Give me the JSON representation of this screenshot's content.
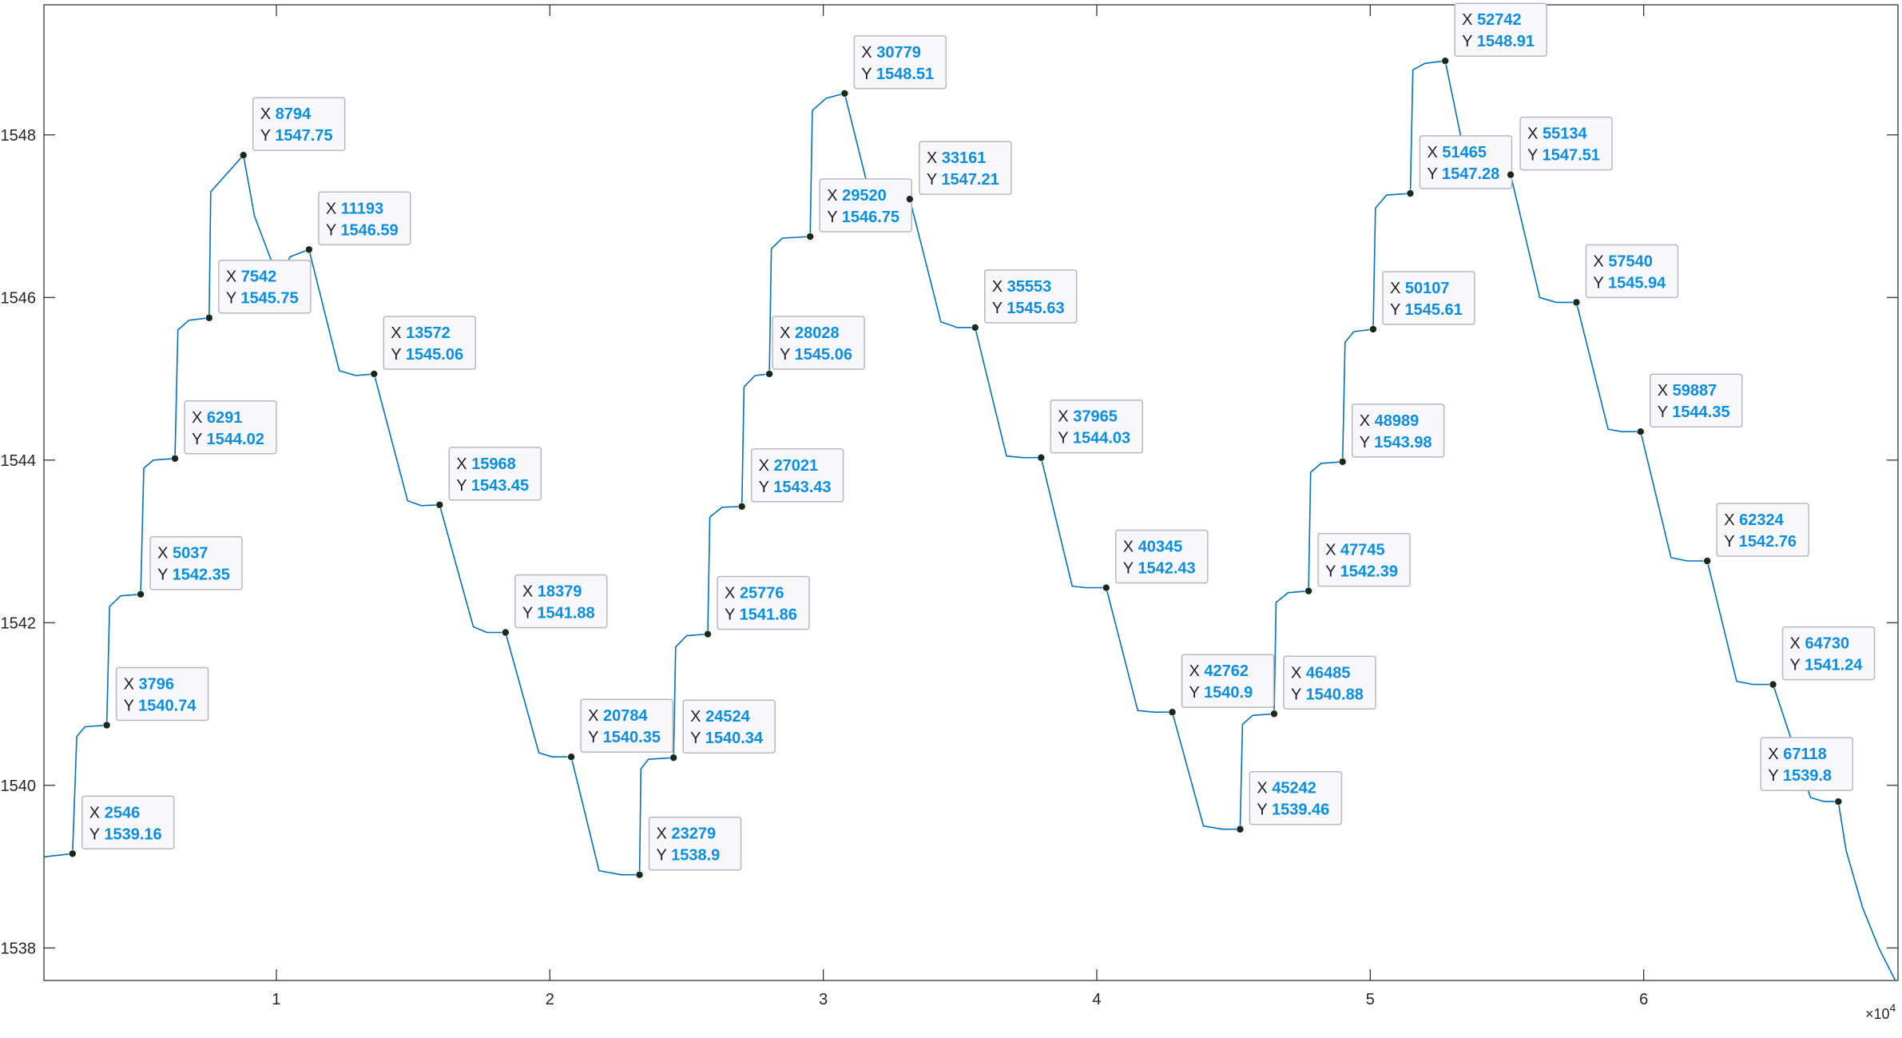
{
  "chart_data": {
    "type": "line",
    "title": "",
    "xlabel": "",
    "ylabel": "",
    "xlim": [
      1500,
      69300
    ],
    "ylim": [
      1537.6,
      1549.6
    ],
    "x_exponent_label": "×10",
    "x_exponent_power": "4",
    "x_ticks": [
      {
        "value": 10000,
        "label": "1"
      },
      {
        "value": 20000,
        "label": "2"
      },
      {
        "value": 30000,
        "label": "3"
      },
      {
        "value": 40000,
        "label": "4"
      },
      {
        "value": 50000,
        "label": "5"
      },
      {
        "value": 60000,
        "label": "6"
      }
    ],
    "y_ticks": [
      {
        "value": 1538,
        "label": "1538"
      },
      {
        "value": 1540,
        "label": "1540"
      },
      {
        "value": 1542,
        "label": "1542"
      },
      {
        "value": 1544,
        "label": "1544"
      },
      {
        "value": 1546,
        "label": "1546"
      },
      {
        "value": 1548,
        "label": "1548"
      }
    ],
    "grid": false,
    "line_color": "#0072BD",
    "marker_color": "#1a2a1a",
    "datatip_value_color": "#0a8ee0",
    "series": [
      {
        "name": "",
        "points": [
          [
            1500,
            1539.12
          ],
          [
            2546,
            1539.16
          ],
          [
            2700,
            1540.6
          ],
          [
            3000,
            1540.72
          ],
          [
            3796,
            1540.74
          ],
          [
            3900,
            1542.2
          ],
          [
            4300,
            1542.33
          ],
          [
            5037,
            1542.35
          ],
          [
            5150,
            1543.9
          ],
          [
            5500,
            1544.0
          ],
          [
            6291,
            1544.02
          ],
          [
            6400,
            1545.6
          ],
          [
            6800,
            1545.72
          ],
          [
            7542,
            1545.75
          ],
          [
            7600,
            1547.3
          ],
          [
            8794,
            1547.75
          ],
          [
            9200,
            1547.0
          ],
          [
            10100,
            1546.2
          ],
          [
            10500,
            1546.5
          ],
          [
            11193,
            1546.59
          ],
          [
            12300,
            1545.1
          ],
          [
            12900,
            1545.04
          ],
          [
            13572,
            1545.06
          ],
          [
            14800,
            1543.5
          ],
          [
            15300,
            1543.44
          ],
          [
            15968,
            1543.45
          ],
          [
            17200,
            1541.95
          ],
          [
            17700,
            1541.88
          ],
          [
            18379,
            1541.88
          ],
          [
            19600,
            1540.4
          ],
          [
            20100,
            1540.35
          ],
          [
            20784,
            1540.35
          ],
          [
            21800,
            1538.95
          ],
          [
            22600,
            1538.9
          ],
          [
            23279,
            1538.9
          ],
          [
            23330,
            1540.2
          ],
          [
            23600,
            1540.32
          ],
          [
            24524,
            1540.34
          ],
          [
            24600,
            1541.7
          ],
          [
            25000,
            1541.84
          ],
          [
            25776,
            1541.86
          ],
          [
            25850,
            1543.3
          ],
          [
            26300,
            1543.42
          ],
          [
            27021,
            1543.43
          ],
          [
            27100,
            1544.9
          ],
          [
            27500,
            1545.04
          ],
          [
            28028,
            1545.06
          ],
          [
            28100,
            1546.6
          ],
          [
            28500,
            1546.73
          ],
          [
            29520,
            1546.75
          ],
          [
            29600,
            1548.3
          ],
          [
            30100,
            1548.45
          ],
          [
            30779,
            1548.51
          ],
          [
            31600,
            1547.4
          ],
          [
            33161,
            1547.21
          ],
          [
            34300,
            1545.7
          ],
          [
            34900,
            1545.63
          ],
          [
            35553,
            1545.63
          ],
          [
            36700,
            1544.05
          ],
          [
            37300,
            1544.03
          ],
          [
            37965,
            1544.03
          ],
          [
            39100,
            1542.45
          ],
          [
            39600,
            1542.43
          ],
          [
            40345,
            1542.43
          ],
          [
            41500,
            1540.92
          ],
          [
            42100,
            1540.9
          ],
          [
            42762,
            1540.9
          ],
          [
            43900,
            1539.5
          ],
          [
            44600,
            1539.46
          ],
          [
            45242,
            1539.46
          ],
          [
            45330,
            1540.75
          ],
          [
            45700,
            1540.86
          ],
          [
            46485,
            1540.88
          ],
          [
            46560,
            1542.25
          ],
          [
            47000,
            1542.37
          ],
          [
            47745,
            1542.39
          ],
          [
            47820,
            1543.85
          ],
          [
            48200,
            1543.96
          ],
          [
            48989,
            1543.98
          ],
          [
            49080,
            1545.45
          ],
          [
            49400,
            1545.58
          ],
          [
            50107,
            1545.61
          ],
          [
            50190,
            1547.1
          ],
          [
            50600,
            1547.26
          ],
          [
            51465,
            1547.28
          ],
          [
            51560,
            1548.8
          ],
          [
            52000,
            1548.88
          ],
          [
            52742,
            1548.91
          ],
          [
            53300,
            1548.0
          ],
          [
            53500,
            1547.5
          ],
          [
            55134,
            1547.51
          ],
          [
            56200,
            1546.0
          ],
          [
            56800,
            1545.94
          ],
          [
            57540,
            1545.94
          ],
          [
            58700,
            1544.38
          ],
          [
            59200,
            1544.35
          ],
          [
            59887,
            1544.35
          ],
          [
            61000,
            1542.8
          ],
          [
            61600,
            1542.76
          ],
          [
            62324,
            1542.76
          ],
          [
            63400,
            1541.28
          ],
          [
            64000,
            1541.24
          ],
          [
            64730,
            1541.24
          ],
          [
            66100,
            1539.85
          ],
          [
            66600,
            1539.8
          ],
          [
            67118,
            1539.8
          ],
          [
            67400,
            1539.2
          ],
          [
            68000,
            1538.5
          ],
          [
            68600,
            1538.0
          ],
          [
            69200,
            1537.6
          ]
        ]
      }
    ],
    "datatips": [
      {
        "x": "2546",
        "y": "1539.16",
        "xv": 2546,
        "yv": 1539.16,
        "dx": 12,
        "dy": -72
      },
      {
        "x": "3796",
        "y": "1540.74",
        "xv": 3796,
        "yv": 1540.74,
        "dx": 12,
        "dy": -72
      },
      {
        "x": "5037",
        "y": "1542.35",
        "xv": 5037,
        "yv": 1542.35,
        "dx": 12,
        "dy": -72
      },
      {
        "x": "6291",
        "y": "1544.02",
        "xv": 6291,
        "yv": 1544.02,
        "dx": 12,
        "dy": -72
      },
      {
        "x": "7542",
        "y": "1545.75",
        "xv": 7542,
        "yv": 1545.75,
        "dx": 12,
        "dy": -72
      },
      {
        "x": "8794",
        "y": "1547.75",
        "xv": 8794,
        "yv": 1547.75,
        "dx": 12,
        "dy": -72
      },
      {
        "x": "11193",
        "y": "1546.59",
        "xv": 11193,
        "yv": 1546.59,
        "dx": 12,
        "dy": -72
      },
      {
        "x": "13572",
        "y": "1545.06",
        "xv": 13572,
        "yv": 1545.06,
        "dx": 12,
        "dy": -72
      },
      {
        "x": "15968",
        "y": "1543.45",
        "xv": 15968,
        "yv": 1543.45,
        "dx": 12,
        "dy": -72
      },
      {
        "x": "18379",
        "y": "1541.88",
        "xv": 18379,
        "yv": 1541.88,
        "dx": 12,
        "dy": -72
      },
      {
        "x": "20784",
        "y": "1540.35",
        "xv": 20784,
        "yv": 1540.35,
        "dx": 12,
        "dy": -72
      },
      {
        "x": "23279",
        "y": "1538.9",
        "xv": 23279,
        "yv": 1538.9,
        "dx": 12,
        "dy": -72
      },
      {
        "x": "24524",
        "y": "1540.34",
        "xv": 24524,
        "yv": 1540.34,
        "dx": 12,
        "dy": -72
      },
      {
        "x": "25776",
        "y": "1541.86",
        "xv": 25776,
        "yv": 1541.86,
        "dx": 12,
        "dy": -72
      },
      {
        "x": "27021",
        "y": "1543.43",
        "xv": 27021,
        "yv": 1543.43,
        "dx": 12,
        "dy": -72
      },
      {
        "x": "28028",
        "y": "1545.06",
        "xv": 28028,
        "yv": 1545.06,
        "dx": 4,
        "dy": -72
      },
      {
        "x": "29520",
        "y": "1546.75",
        "xv": 29520,
        "yv": 1546.75,
        "dx": 12,
        "dy": -72
      },
      {
        "x": "30779",
        "y": "1548.51",
        "xv": 30779,
        "yv": 1548.51,
        "dx": 12,
        "dy": -72
      },
      {
        "x": "33161",
        "y": "1547.21",
        "xv": 33161,
        "yv": 1547.21,
        "dx": 12,
        "dy": -72
      },
      {
        "x": "35553",
        "y": "1545.63",
        "xv": 35553,
        "yv": 1545.63,
        "dx": 12,
        "dy": -72
      },
      {
        "x": "37965",
        "y": "1544.03",
        "xv": 37965,
        "yv": 1544.03,
        "dx": 12,
        "dy": -72
      },
      {
        "x": "40345",
        "y": "1542.43",
        "xv": 40345,
        "yv": 1542.43,
        "dx": 12,
        "dy": -72
      },
      {
        "x": "42762",
        "y": "1540.9",
        "xv": 42762,
        "yv": 1540.9,
        "dx": 12,
        "dy": -72
      },
      {
        "x": "45242",
        "y": "1539.46",
        "xv": 45242,
        "yv": 1539.46,
        "dx": 12,
        "dy": -72
      },
      {
        "x": "46485",
        "y": "1540.88",
        "xv": 46485,
        "yv": 1540.88,
        "dx": 12,
        "dy": -72
      },
      {
        "x": "47745",
        "y": "1542.39",
        "xv": 47745,
        "yv": 1542.39,
        "dx": 12,
        "dy": -72
      },
      {
        "x": "48989",
        "y": "1543.98",
        "xv": 48989,
        "yv": 1543.98,
        "dx": 12,
        "dy": -72
      },
      {
        "x": "50107",
        "y": "1545.61",
        "xv": 50107,
        "yv": 1545.61,
        "dx": 12,
        "dy": -72
      },
      {
        "x": "51465",
        "y": "1547.28",
        "xv": 51465,
        "yv": 1547.28,
        "dx": 12,
        "dy": -72
      },
      {
        "x": "52742",
        "y": "1548.91",
        "xv": 52742,
        "yv": 1548.91,
        "dx": 12,
        "dy": -72
      },
      {
        "x": "55134",
        "y": "1547.51",
        "xv": 55134,
        "yv": 1547.51,
        "dx": 12,
        "dy": -72
      },
      {
        "x": "57540",
        "y": "1545.94",
        "xv": 57540,
        "yv": 1545.94,
        "dx": 12,
        "dy": -72
      },
      {
        "x": "59887",
        "y": "1544.35",
        "xv": 59887,
        "yv": 1544.35,
        "dx": 12,
        "dy": -72
      },
      {
        "x": "62324",
        "y": "1542.76",
        "xv": 62324,
        "yv": 1542.76,
        "dx": 12,
        "dy": -72
      },
      {
        "x": "64730",
        "y": "1541.24",
        "xv": 64730,
        "yv": 1541.24,
        "dx": 12,
        "dy": -72
      },
      {
        "x": "67118",
        "y": "1539.8",
        "xv": 67118,
        "yv": 1539.8,
        "dx": -97,
        "dy": -80
      }
    ]
  }
}
